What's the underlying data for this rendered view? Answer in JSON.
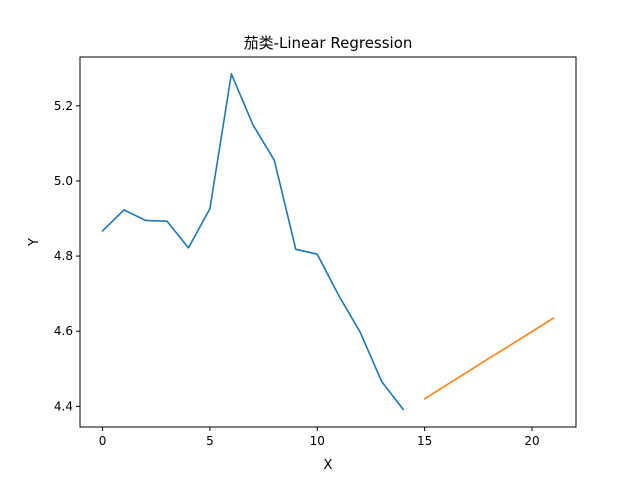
{
  "chart_data": {
    "type": "line",
    "title": "茄类-Linear Regression",
    "xlabel": "X",
    "ylabel": "Y",
    "xlim": [
      -1.05,
      22.05
    ],
    "ylim": [
      4.345,
      5.33
    ],
    "xticks": [
      0,
      5,
      10,
      15,
      20
    ],
    "yticks": [
      4.4,
      4.6,
      4.8,
      5.0,
      5.2
    ],
    "grid": false,
    "series": [
      {
        "color": "#1f77b4",
        "x": [
          0,
          1,
          2,
          3,
          4,
          5,
          6,
          7,
          8,
          9,
          10,
          11,
          12,
          13,
          14
        ],
        "y": [
          4.867,
          4.923,
          4.895,
          4.893,
          4.822,
          4.926,
          5.285,
          5.15,
          5.055,
          4.818,
          4.805,
          4.695,
          4.597,
          4.466,
          4.392
        ]
      },
      {
        "color": "#ff7f0e",
        "x": [
          15,
          16,
          17,
          18,
          19,
          20,
          21
        ],
        "y": [
          4.42,
          4.456,
          4.492,
          4.528,
          4.563,
          4.599,
          4.635
        ]
      }
    ]
  }
}
